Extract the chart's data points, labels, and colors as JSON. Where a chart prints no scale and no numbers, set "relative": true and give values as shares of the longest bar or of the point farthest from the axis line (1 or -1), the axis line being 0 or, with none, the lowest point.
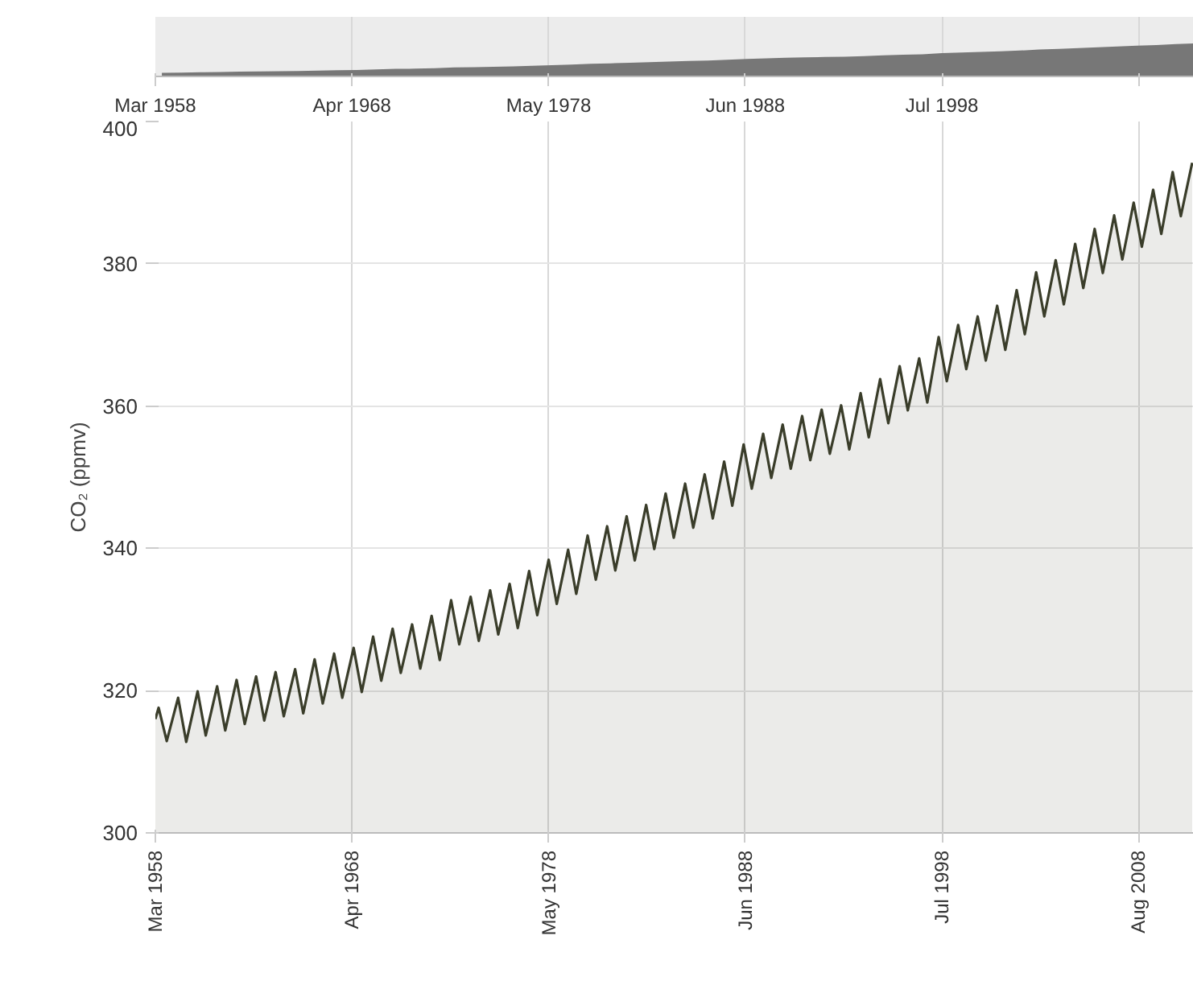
{
  "chart_data": [
    {
      "type": "area",
      "relative": true,
      "xlim": [
        "1958-03",
        "2011-06"
      ],
      "grid": "x",
      "tick_labels": "x",
      "xticks": [
        {
          "value": "1958-03",
          "label": "Mar 1958"
        },
        {
          "value": "1968-04",
          "label": "Apr 1968"
        },
        {
          "value": "1978-05",
          "label": "May 1978"
        },
        {
          "value": "1988-06",
          "label": "Jun 1988"
        },
        {
          "value": "1998-07",
          "label": "Jul 1998"
        },
        {
          "value": "2008-08",
          "label": null
        }
      ],
      "series": [
        {
          "color": "#777777",
          "x": [
            "1958-07",
            "1959-07",
            "1960-07",
            "1961-07",
            "1962-07",
            "1963-07",
            "1964-07",
            "1965-07",
            "1966-07",
            "1967-07",
            "1968-07",
            "1969-07",
            "1970-07",
            "1971-07",
            "1972-07",
            "1973-07",
            "1974-07",
            "1975-07",
            "1976-07",
            "1977-07",
            "1978-07",
            "1979-07",
            "1980-07",
            "1981-07",
            "1982-07",
            "1983-07",
            "1984-07",
            "1985-07",
            "1986-07",
            "1987-07",
            "1988-07",
            "1989-07",
            "1990-07",
            "1991-07",
            "1992-07",
            "1993-07",
            "1994-07",
            "1995-07",
            "1996-07",
            "1997-07",
            "1998-07",
            "1999-07",
            "2000-07",
            "2001-07",
            "2002-07",
            "2003-07",
            "2004-07",
            "2005-07",
            "2006-07",
            "2007-07",
            "2008-07",
            "2009-07",
            "2010-07",
            "2011-06"
          ],
          "values": [
            0,
            0.009,
            0.021,
            0.031,
            0.041,
            0.048,
            0.057,
            0.062,
            0.08,
            0.09,
            0.101,
            0.122,
            0.136,
            0.144,
            0.159,
            0.188,
            0.195,
            0.207,
            0.219,
            0.243,
            0.263,
            0.282,
            0.307,
            0.325,
            0.342,
            0.363,
            0.384,
            0.404,
            0.421,
            0.444,
            0.475,
            0.495,
            0.512,
            0.528,
            0.539,
            0.547,
            0.57,
            0.596,
            0.62,
            0.634,
            0.673,
            0.695,
            0.711,
            0.731,
            0.759,
            0.792,
            0.815,
            0.845,
            0.872,
            0.897,
            0.921,
            0.945,
            0.977,
            1
          ]
        }
      ]
    },
    {
      "type": "area",
      "ylabel": "CO₂ (ppmv)",
      "xlim": [
        "1958-03",
        "2011-06"
      ],
      "ylim": [
        300,
        400
      ],
      "yticks": [
        300,
        320,
        340,
        360,
        380,
        400
      ],
      "grid": true,
      "xticks": [
        {
          "value": "1958-03",
          "label": "Mar 1958"
        },
        {
          "value": "1968-04",
          "label": "Apr 1968"
        },
        {
          "value": "1978-05",
          "label": "May 1978"
        },
        {
          "value": "1988-06",
          "label": "Jun 1988"
        },
        {
          "value": "1998-07",
          "label": "Jul 1998"
        },
        {
          "value": "2008-08",
          "label": "Aug 2008"
        }
      ],
      "series": [
        {
          "color": "#3a3d2a",
          "x": [
            "1958-03",
            "1958-05",
            "1958-10",
            "1959-05",
            "1959-10",
            "1960-05",
            "1960-10",
            "1961-05",
            "1961-10",
            "1962-05",
            "1962-10",
            "1963-05",
            "1963-10",
            "1964-05",
            "1964-10",
            "1965-05",
            "1965-10",
            "1966-05",
            "1966-10",
            "1967-05",
            "1967-10",
            "1968-05",
            "1968-10",
            "1969-05",
            "1969-10",
            "1970-05",
            "1970-10",
            "1971-05",
            "1971-10",
            "1972-05",
            "1972-10",
            "1973-05",
            "1973-10",
            "1974-05",
            "1974-10",
            "1975-05",
            "1975-10",
            "1976-05",
            "1976-10",
            "1977-05",
            "1977-10",
            "1978-05",
            "1978-10",
            "1979-05",
            "1979-10",
            "1980-05",
            "1980-10",
            "1981-05",
            "1981-10",
            "1982-05",
            "1982-10",
            "1983-05",
            "1983-10",
            "1984-05",
            "1984-10",
            "1985-05",
            "1985-10",
            "1986-05",
            "1986-10",
            "1987-05",
            "1987-10",
            "1988-05",
            "1988-10",
            "1989-05",
            "1989-10",
            "1990-05",
            "1990-10",
            "1991-05",
            "1991-10",
            "1992-05",
            "1992-10",
            "1993-05",
            "1993-10",
            "1994-05",
            "1994-10",
            "1995-05",
            "1995-10",
            "1996-05",
            "1996-10",
            "1997-05",
            "1997-10",
            "1998-05",
            "1998-10",
            "1999-05",
            "1999-10",
            "2000-05",
            "2000-10",
            "2001-05",
            "2001-10",
            "2002-05",
            "2002-10",
            "2003-05",
            "2003-10",
            "2004-05",
            "2004-10",
            "2005-05",
            "2005-10",
            "2006-05",
            "2006-10",
            "2007-05",
            "2007-10",
            "2008-05",
            "2008-10",
            "2009-05",
            "2009-10",
            "2010-05",
            "2010-10",
            "2011-05"
          ],
          "values": [
            316.0,
            317.6,
            312.9,
            319.0,
            312.8,
            319.9,
            313.7,
            320.6,
            314.4,
            321.5,
            315.3,
            322.0,
            315.8,
            322.6,
            316.4,
            323.0,
            316.8,
            324.4,
            318.2,
            325.2,
            319.0,
            326.0,
            319.8,
            327.6,
            321.4,
            328.7,
            322.5,
            329.3,
            323.1,
            330.5,
            324.3,
            332.7,
            326.5,
            333.2,
            327.0,
            334.1,
            327.9,
            335.0,
            328.8,
            336.8,
            330.6,
            338.4,
            332.2,
            339.8,
            333.6,
            341.8,
            335.6,
            343.1,
            336.9,
            344.5,
            338.3,
            346.1,
            339.9,
            347.7,
            341.5,
            349.1,
            342.9,
            350.4,
            344.2,
            352.2,
            346.0,
            354.6,
            348.4,
            356.1,
            349.9,
            357.4,
            351.2,
            358.6,
            352.4,
            359.5,
            353.3,
            360.1,
            353.9,
            361.8,
            355.6,
            363.8,
            357.6,
            365.6,
            359.4,
            366.7,
            360.5,
            369.7,
            363.5,
            371.4,
            365.2,
            372.6,
            366.4,
            374.1,
            367.9,
            376.3,
            370.1,
            378.8,
            372.6,
            380.5,
            374.3,
            382.8,
            376.6,
            384.9,
            378.7,
            386.8,
            380.6,
            388.6,
            382.4,
            390.4,
            384.2,
            392.9,
            386.7,
            394.2
          ]
        }
      ]
    }
  ]
}
